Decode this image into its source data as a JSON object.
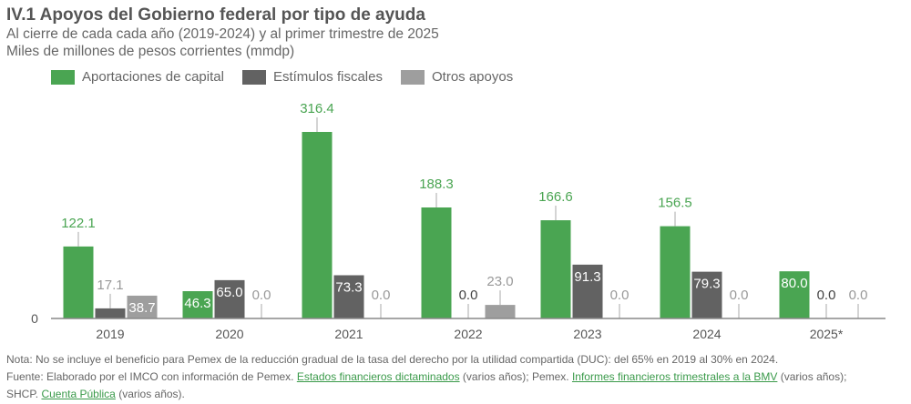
{
  "chart_data": {
    "type": "bar",
    "title": "IV.1 Apoyos del Gobierno federal por tipo de ayuda",
    "subtitle": [
      "Al cierre de cada cada año (2019-2024) y al primer trimestre de 2025",
      "Miles de millones de pesos corrientes (mmdp)"
    ],
    "categories": [
      "2019",
      "2020",
      "2021",
      "2022",
      "2023",
      "2024",
      "2025*"
    ],
    "y_tick_labels": [
      "0"
    ],
    "ylim": [
      0,
      316.4
    ],
    "grid": false,
    "legend_placement": "top-left",
    "series": [
      {
        "name": "Aportaciones de capital",
        "color": "#4aa552",
        "values": [
          122.1,
          46.3,
          316.4,
          188.3,
          166.6,
          156.5,
          80.0
        ],
        "labels": [
          "122.1",
          "46.3",
          "316.4",
          "188.3",
          "166.6",
          "156.5",
          "80.0"
        ],
        "label_inside": [
          false,
          true,
          false,
          false,
          false,
          false,
          true
        ]
      },
      {
        "name": "Estímulos fiscales",
        "color": "#626262",
        "values": [
          17.1,
          65.0,
          73.3,
          0.0,
          91.3,
          79.3,
          0.0
        ],
        "labels": [
          "17.1",
          "65.0",
          "73.3",
          "0.0",
          "91.3",
          "79.3",
          "0.0"
        ],
        "label_inside": [
          false,
          true,
          true,
          false,
          true,
          true,
          false
        ]
      },
      {
        "name": "Otros apoyos",
        "color": "#9e9e9e",
        "values": [
          38.7,
          0.0,
          0.0,
          23.0,
          0.0,
          0.0,
          0.0
        ],
        "labels": [
          "38.7",
          "0.0",
          "0.0",
          "23.0",
          "0.0",
          "0.0",
          "0.0"
        ],
        "label_inside": [
          true,
          false,
          false,
          false,
          false,
          false,
          false
        ]
      }
    ]
  },
  "notes": {
    "nota": "Nota: No se incluye el beneficio para Pemex de la reducción gradual de la tasa del derecho por la utilidad compartida (DUC): del 65% en 2019 al 30% en 2024.",
    "fuente_1": "Fuente: Elaborado por el IMCO con información de Pemex. ",
    "link_1": "Estados financieros dictaminados",
    "fuente_2": " (varios años); Pemex. ",
    "link_2": "Informes financieros trimestrales a la BMV",
    "fuente_3": " (varios años);",
    "fuente_4": "SHCP. ",
    "link_3": "Cuenta Pública",
    "fuente_5": " (varios años)."
  }
}
